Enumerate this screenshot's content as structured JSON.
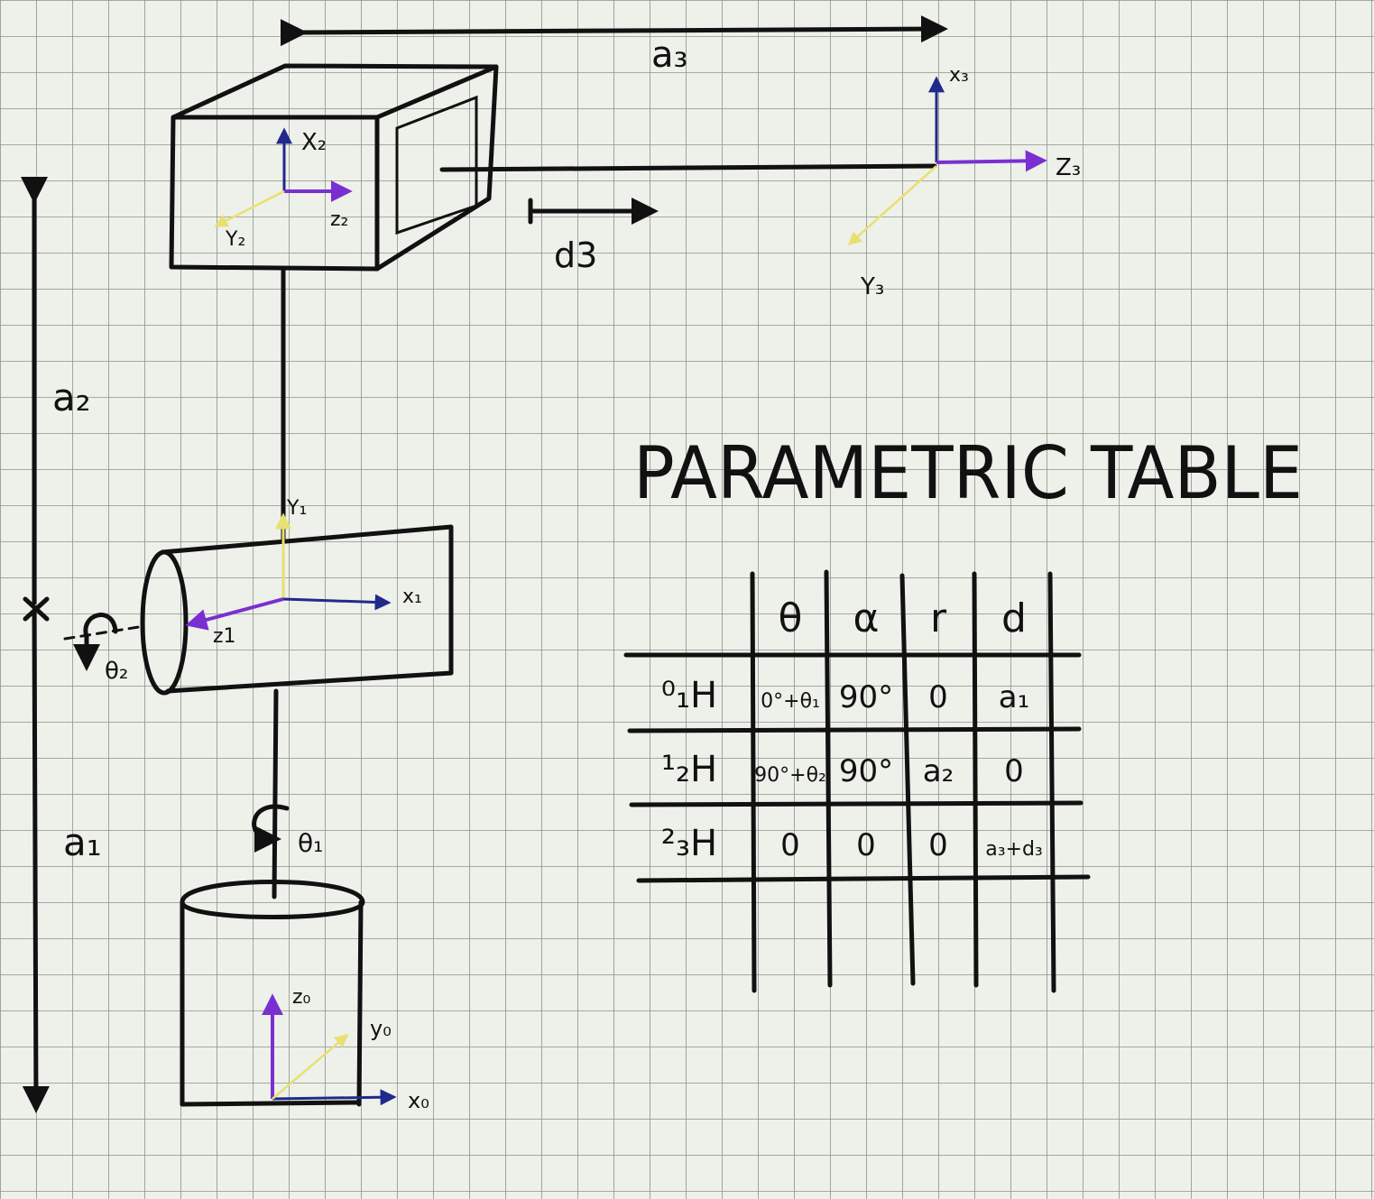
{
  "colors": {
    "paper": "#eef0ea",
    "grid": "#8a948a",
    "ink": "#111111",
    "axis_blue": "#1f2a8a",
    "axis_purple": "#7a2fd0",
    "axis_yellow": "#e8e070"
  },
  "dimensions": {
    "a3": "a₃",
    "a2": "a₂",
    "a1": "a₁",
    "d3": "d3",
    "theta1": "θ₁",
    "theta2": "θ₂"
  },
  "frames": {
    "frame0": {
      "x": "x₀",
      "y": "y₀",
      "z": "z₀"
    },
    "frame1": {
      "x": "x₁",
      "y": "Y₁",
      "z": "z1"
    },
    "frame2": {
      "x": "X₂",
      "y": "Y₂",
      "z": "z₂"
    },
    "frame3": {
      "x": "x₃",
      "y": "Y₃",
      "z": "Z₃"
    }
  },
  "table": {
    "title": "PARAMETRIC TABLE",
    "headers": [
      "",
      "θ",
      "α",
      "r",
      "d"
    ],
    "rows": [
      {
        "label": "⁰₁H",
        "theta": "0°+θ₁",
        "alpha": "90°",
        "r": "0",
        "d": "a₁"
      },
      {
        "label": "¹₂H",
        "theta": "90°+θ₂",
        "alpha": "90°",
        "r": "a₂",
        "d": "0"
      },
      {
        "label": "²₃H",
        "theta": "0",
        "alpha": "0",
        "r": "0",
        "d": "a₃+d₃"
      }
    ]
  }
}
